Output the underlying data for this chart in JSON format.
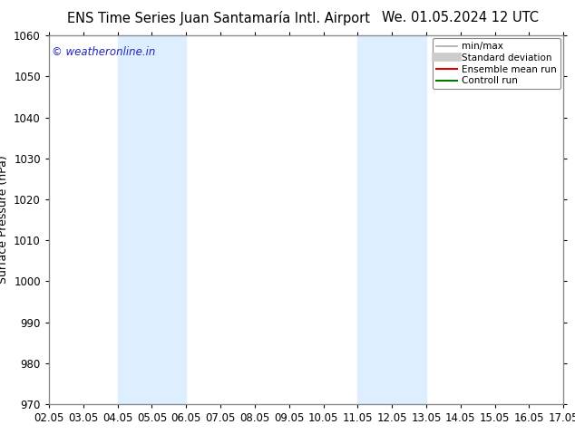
{
  "title_left": "ENS Time Series Juan Santamaría Intl. Airport",
  "title_right": "We. 01.05.2024 12 UTC",
  "ylabel": "Surface Pressure (hPa)",
  "ylim": [
    970,
    1060
  ],
  "yticks": [
    970,
    980,
    990,
    1000,
    1010,
    1020,
    1030,
    1040,
    1050,
    1060
  ],
  "xlim": [
    0,
    15
  ],
  "xtick_labels": [
    "02.05",
    "03.05",
    "04.05",
    "05.05",
    "06.05",
    "07.05",
    "08.05",
    "09.05",
    "10.05",
    "11.05",
    "12.05",
    "13.05",
    "14.05",
    "15.05",
    "16.05",
    "17.05"
  ],
  "xtick_positions": [
    0,
    1,
    2,
    3,
    4,
    5,
    6,
    7,
    8,
    9,
    10,
    11,
    12,
    13,
    14,
    15
  ],
  "shaded_bands": [
    {
      "xmin": 2,
      "xmax": 4
    },
    {
      "xmin": 9,
      "xmax": 11
    }
  ],
  "band_color": "#ddeeff",
  "watermark_text": "© weatheronline.in",
  "watermark_color": "#2222bb",
  "legend_entries": [
    {
      "label": "min/max",
      "color": "#aaaaaa",
      "lw": 1.2,
      "style": "line"
    },
    {
      "label": "Standard deviation",
      "color": "#cccccc",
      "lw": 7,
      "style": "line"
    },
    {
      "label": "Ensemble mean run",
      "color": "#dd0000",
      "lw": 1.5,
      "style": "line"
    },
    {
      "label": "Controll run",
      "color": "#007700",
      "lw": 1.5,
      "style": "line"
    }
  ],
  "bg_color": "#ffffff",
  "title_fontsize": 10.5,
  "axis_label_fontsize": 9,
  "tick_fontsize": 8.5
}
